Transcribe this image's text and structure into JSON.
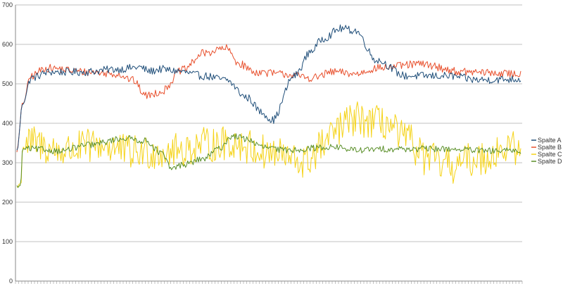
{
  "chart_data": {
    "type": "line",
    "title": "",
    "xlabel": "",
    "ylabel": "",
    "ylim": [
      0,
      700
    ],
    "yticks": [
      0,
      100,
      200,
      300,
      400,
      500,
      600,
      700
    ],
    "grid": "horizontal",
    "legend_position": "right",
    "x_points": 470,
    "series": [
      {
        "name": "Spalte A",
        "color": "#1f4e79",
        "noise": 10,
        "keypoints": [
          [
            0,
            330
          ],
          [
            8,
            450
          ],
          [
            20,
            515
          ],
          [
            45,
            530
          ],
          [
            90,
            530
          ],
          [
            140,
            537
          ],
          [
            170,
            542
          ],
          [
            185,
            532
          ],
          [
            200,
            537
          ],
          [
            220,
            533
          ],
          [
            260,
            520
          ],
          [
            290,
            510
          ],
          [
            320,
            465
          ],
          [
            340,
            428
          ],
          [
            355,
            408
          ],
          [
            385,
            520
          ],
          [
            410,
            585
          ],
          [
            425,
            615
          ],
          [
            450,
            640
          ],
          [
            470,
            635
          ],
          [
            500,
            560
          ],
          [
            540,
            520
          ],
          [
            570,
            520
          ],
          [
            600,
            520
          ],
          [
            640,
            510
          ],
          [
            700,
            512
          ]
        ]
      },
      {
        "name": "Spalte B",
        "color": "#e8502d",
        "noise": 10,
        "keypoints": [
          [
            0,
            330
          ],
          [
            8,
            450
          ],
          [
            20,
            520
          ],
          [
            40,
            540
          ],
          [
            100,
            530
          ],
          [
            140,
            525
          ],
          [
            160,
            510
          ],
          [
            180,
            470
          ],
          [
            200,
            480
          ],
          [
            230,
            535
          ],
          [
            260,
            578
          ],
          [
            290,
            590
          ],
          [
            310,
            550
          ],
          [
            330,
            530
          ],
          [
            370,
            525
          ],
          [
            410,
            515
          ],
          [
            440,
            530
          ],
          [
            470,
            525
          ],
          [
            500,
            540
          ],
          [
            560,
            550
          ],
          [
            620,
            530
          ],
          [
            700,
            525
          ]
        ]
      },
      {
        "name": "Spalte C",
        "color": "#f5d318",
        "noise": 45,
        "keypoints": [
          [
            0,
            240
          ],
          [
            5,
            240
          ],
          [
            8,
            340
          ],
          [
            20,
            350
          ],
          [
            60,
            330
          ],
          [
            120,
            345
          ],
          [
            160,
            325
          ],
          [
            220,
            330
          ],
          [
            260,
            345
          ],
          [
            300,
            350
          ],
          [
            350,
            325
          ],
          [
            400,
            300
          ],
          [
            430,
            350
          ],
          [
            445,
            385
          ],
          [
            470,
            410
          ],
          [
            510,
            400
          ],
          [
            540,
            360
          ],
          [
            570,
            310
          ],
          [
            600,
            290
          ],
          [
            640,
            310
          ],
          [
            680,
            335
          ],
          [
            700,
            340
          ]
        ]
      },
      {
        "name": "Spalte D",
        "color": "#5a8f29",
        "noise": 8,
        "keypoints": [
          [
            0,
            240
          ],
          [
            5,
            240
          ],
          [
            8,
            335
          ],
          [
            20,
            335
          ],
          [
            60,
            330
          ],
          [
            100,
            345
          ],
          [
            150,
            362
          ],
          [
            180,
            355
          ],
          [
            200,
            325
          ],
          [
            215,
            285
          ],
          [
            230,
            295
          ],
          [
            260,
            310
          ],
          [
            280,
            335
          ],
          [
            300,
            368
          ],
          [
            320,
            360
          ],
          [
            340,
            340
          ],
          [
            370,
            332
          ],
          [
            440,
            340
          ],
          [
            470,
            332
          ],
          [
            520,
            335
          ],
          [
            560,
            335
          ],
          [
            600,
            335
          ],
          [
            650,
            330
          ],
          [
            700,
            330
          ]
        ]
      }
    ]
  }
}
